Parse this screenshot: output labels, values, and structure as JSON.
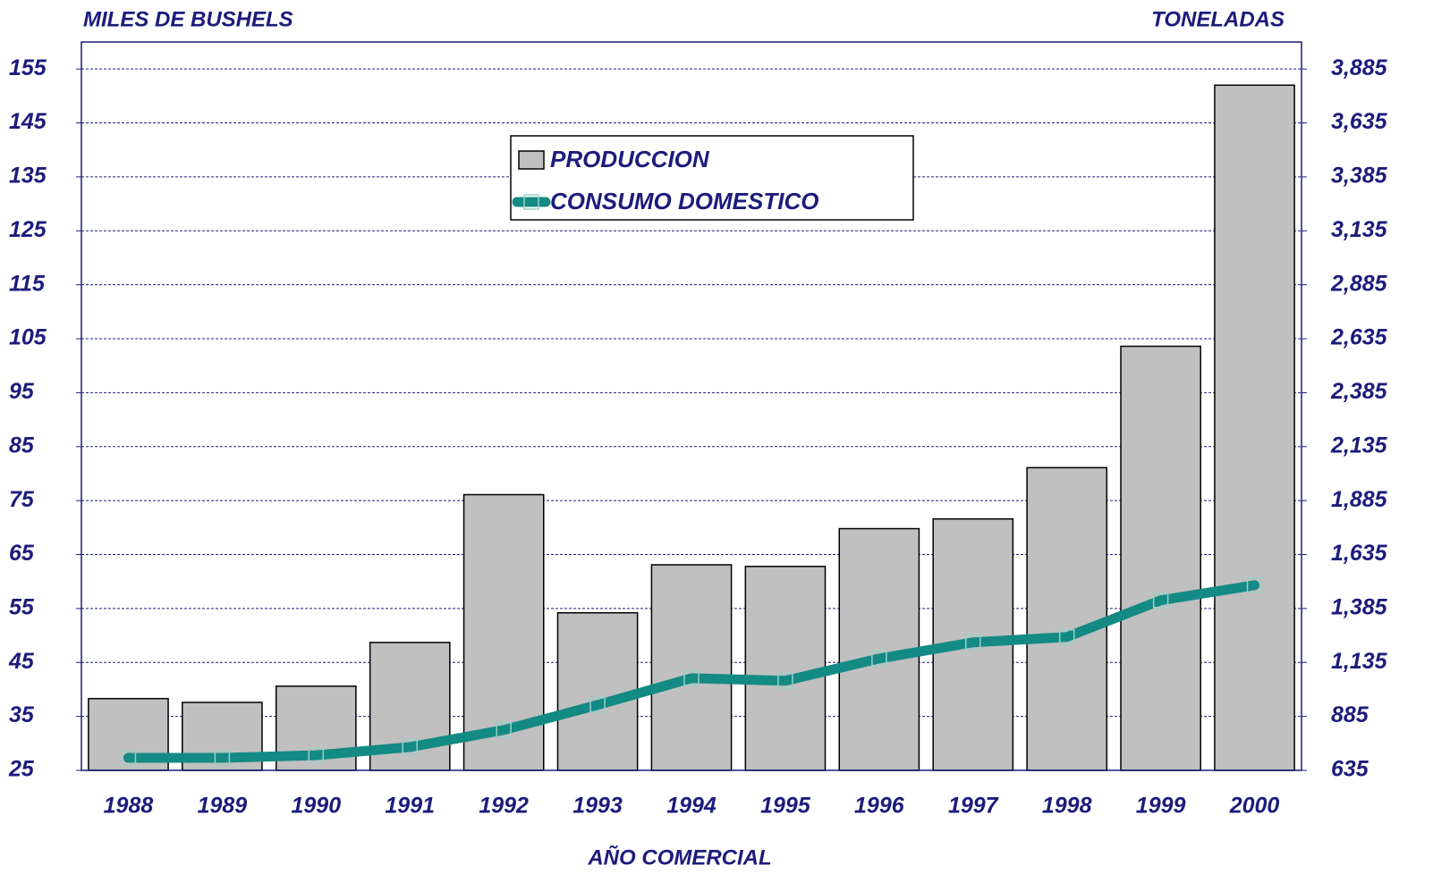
{
  "chart_data": {
    "type": "bar_line",
    "y_label": "MILES DE BUSHELS",
    "y2_label": "TONELADAS",
    "x_label": "AÑO COMERCIAL",
    "categories": [
      "1988",
      "1989",
      "1990",
      "1991",
      "1992",
      "1993",
      "1994",
      "1995",
      "1996",
      "1997",
      "1998",
      "1999",
      "2000"
    ],
    "series": [
      {
        "name": "PRODUCCION",
        "type": "bar",
        "color": "#c0c0c0",
        "axis": "y",
        "values": [
          38.3,
          37.6,
          40.6,
          48.7,
          76.1,
          54.2,
          63.1,
          62.8,
          69.8,
          71.6,
          81.1,
          103.6,
          152.0
        ]
      },
      {
        "name": "CONSUMO DOMESTICO",
        "type": "line",
        "color": "#138a84",
        "axis": "y2",
        "values": [
          693,
          693,
          705,
          743,
          822,
          938,
          1062,
          1050,
          1153,
          1228,
          1253,
          1423,
          1493
        ]
      }
    ],
    "ylim": [
      25,
      160
    ],
    "yticks": [
      25,
      35,
      45,
      55,
      65,
      75,
      85,
      95,
      105,
      115,
      125,
      135,
      145,
      155
    ],
    "y2lim": [
      635,
      4010
    ],
    "y2ticks": [
      635,
      885,
      {
        "value": 1135,
        "label": "1,135"
      },
      {
        "value": 1385,
        "label": "1,385"
      },
      {
        "value": 1635,
        "label": "1,635"
      },
      {
        "value": 1885,
        "label": "1,885"
      },
      {
        "value": 2135,
        "label": "2,135"
      },
      {
        "value": 2385,
        "label": "2,385"
      },
      {
        "value": 2635,
        "label": "2,635"
      },
      {
        "value": 2885,
        "label": "2,885"
      },
      {
        "value": 3135,
        "label": "3,135"
      },
      {
        "value": 3385,
        "label": "3,385"
      },
      {
        "value": 3635,
        "label": "3,635"
      },
      {
        "value": 3885,
        "label": "3,885"
      }
    ],
    "grid": true
  }
}
